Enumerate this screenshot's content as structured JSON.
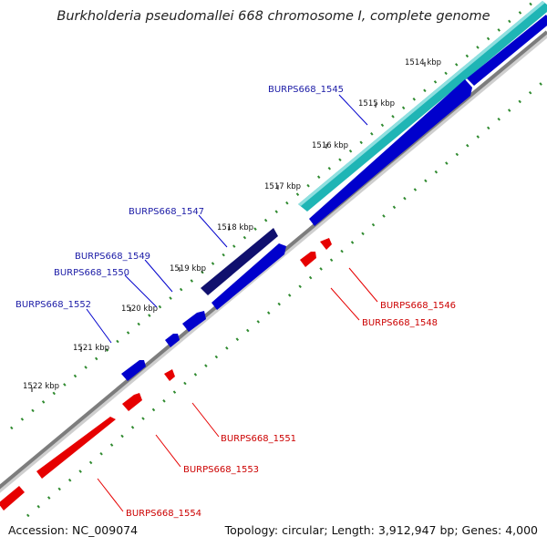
{
  "title": "Burkholderia pseudomallei 668 chromosome I, complete genome",
  "footer": {
    "accession": "Accession: NC_009074",
    "topology": "Topology: circular",
    "length": "Length: 3,912,947 bp",
    "genes": "Genes: 4,000"
  },
  "ticks": [
    "1514 kbp",
    "1515 kbp",
    "1516 kbp",
    "1517 kbp",
    "1518 kbp",
    "1519 kbp",
    "1520 kbp",
    "1521 kbp",
    "1522 kbp"
  ],
  "genes_forward": [
    "BURPS668_1545",
    "BURPS668_1547",
    "BURPS668_1549",
    "BURPS668_1550",
    "BURPS668_1552"
  ],
  "genes_reverse": [
    "BURPS668_1546",
    "BURPS668_1548",
    "BURPS668_1551",
    "BURPS668_1553",
    "BURPS668_1554"
  ],
  "colors": {
    "forward": "#0000cc",
    "forward_label": "#1a1aa6",
    "reverse": "#e60000",
    "reverse_label": "#cc0000",
    "highlight_teal": "#1fb5b5",
    "highlight_navy": "#10106e",
    "backbone": "#8c8c8c",
    "gc_dots": "#2f8a2f",
    "tick_label": "#111111"
  }
}
